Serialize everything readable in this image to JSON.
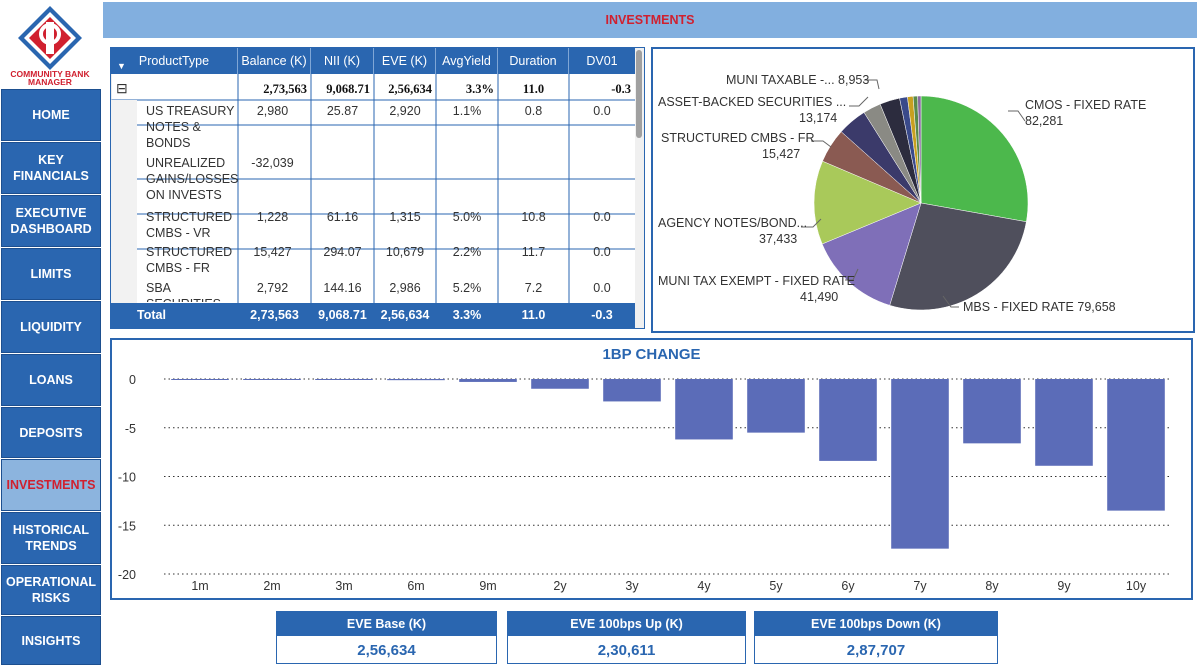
{
  "app": {
    "brand_line1": "COMMUNITY BANK",
    "brand_line2": "MANAGER",
    "page_title": "INVESTMENTS"
  },
  "nav": [
    {
      "label": "HOME"
    },
    {
      "label": "KEY\nFINANCIALS"
    },
    {
      "label": "EXECUTIVE\nDASHBOARD"
    },
    {
      "label": "LIMITS"
    },
    {
      "label": "LIQUIDITY"
    },
    {
      "label": "LOANS"
    },
    {
      "label": "DEPOSITS"
    },
    {
      "label": "INVESTMENTS",
      "active": true
    },
    {
      "label": "HISTORICAL\nTRENDS"
    },
    {
      "label": "OPERATIONAL\nRISKS"
    },
    {
      "label": "INSIGHTS"
    }
  ],
  "table": {
    "columns": [
      "ProductType",
      "Balance (K)",
      "NII (K)",
      "EVE (K)",
      "AvgYield",
      "Duration",
      "DV01"
    ],
    "group_row": {
      "toggle": "⊟",
      "balance": "2,73,563",
      "nii": "9,068.71",
      "eve": "2,56,634",
      "avgyield": "3.3%",
      "duration": "11.0",
      "dv01": "-0.3"
    },
    "rows": [
      {
        "name": "US TREASURY\nNOTES &\nBONDS",
        "balance": "2,980",
        "nii": "25.87",
        "eve": "2,920",
        "avgyield": "1.1%",
        "duration": "0.8",
        "dv01": "0.0"
      },
      {
        "name": "UNREALIZED\nGAINS/LOSSES\nON INVESTS",
        "balance": "-32,039",
        "nii": "",
        "eve": "",
        "avgyield": "",
        "duration": "",
        "dv01": ""
      },
      {
        "name": "STRUCTURED\nCMBS - VR",
        "balance": "1,228",
        "nii": "61.16",
        "eve": "1,315",
        "avgyield": "5.0%",
        "duration": "10.8",
        "dv01": "0.0"
      },
      {
        "name": "STRUCTURED\nCMBS - FR",
        "balance": "15,427",
        "nii": "294.07",
        "eve": "10,679",
        "avgyield": "2.2%",
        "duration": "11.7",
        "dv01": "0.0"
      },
      {
        "name": "SBA\nSECURITIES",
        "balance": "2,792",
        "nii": "144.16",
        "eve": "2,986",
        "avgyield": "5.2%",
        "duration": "7.2",
        "dv01": "0.0"
      }
    ],
    "total": {
      "label": "Total",
      "balance": "2,73,563",
      "nii": "9,068.71",
      "eve": "2,56,634",
      "avgyield": "3.3%",
      "duration": "11.0",
      "dv01": "-0.3"
    }
  },
  "pie_labels": {
    "muni_taxable": "MUNI TAXABLE -... 8,953",
    "abs_name": "ASSET-BACKED SECURITIES ...",
    "abs_value": "13,174",
    "cmbs_fr_name": "STRUCTURED CMBS - FR",
    "cmbs_fr_value": "15,427",
    "agency_name": "AGENCY NOTES/BOND...",
    "agency_value": "37,433",
    "muni_exempt_name": "MUNI TAX EXEMPT - FIXED RATE",
    "muni_exempt_value": "41,490",
    "mbs": "MBS - FIXED RATE 79,658",
    "cmos_name": "CMOS - FIXED RATE",
    "cmos_value": "82,281"
  },
  "chart_data": [
    {
      "type": "pie",
      "title": "",
      "slices": [
        {
          "label": "CMOS - FIXED RATE",
          "value": 82281,
          "color": "#4cb84c"
        },
        {
          "label": "MBS - FIXED RATE",
          "value": 79658,
          "color": "#4f4f5c"
        },
        {
          "label": "MUNI TAX EXEMPT - FIXED RATE",
          "value": 41490,
          "color": "#7f6fb8"
        },
        {
          "label": "AGENCY NOTES/BOND...",
          "value": 37433,
          "color": "#a9c95a"
        },
        {
          "label": "STRUCTURED CMBS - FR",
          "value": 15427,
          "color": "#8a5a52"
        },
        {
          "label": "ASSET-BACKED SECURITIES ...",
          "value": 13174,
          "color": "#3b3a6a"
        },
        {
          "label": "",
          "value": 8000,
          "color": "#8a8a84"
        },
        {
          "label": "MUNI TAXABLE -...",
          "value": 8953,
          "color": "#2c2c3e"
        },
        {
          "label": "",
          "value": 3500,
          "color": "#3a4a8a"
        },
        {
          "label": "",
          "value": 2500,
          "color": "#c8a020"
        },
        {
          "label": "",
          "value": 2000,
          "color": "#5a8a4a"
        },
        {
          "label": "",
          "value": 1500,
          "color": "#8a6aa0"
        }
      ]
    },
    {
      "type": "bar",
      "title": "1BP CHANGE",
      "categories": [
        "1m",
        "2m",
        "3m",
        "6m",
        "9m",
        "2y",
        "3y",
        "4y",
        "5y",
        "6y",
        "7y",
        "8y",
        "9y",
        "10y"
      ],
      "values": [
        -0.05,
        -0.08,
        -0.1,
        -0.12,
        -0.3,
        -1.0,
        -2.3,
        -6.2,
        -5.5,
        -8.4,
        -17.4,
        -6.6,
        -8.9,
        -13.5
      ],
      "ylim": [
        -20,
        0
      ],
      "yticks": [
        0,
        -5,
        -10,
        -15,
        -20
      ],
      "grid": true,
      "color": "#5b6cb8"
    }
  ],
  "kpis": [
    {
      "label": "EVE Base (K)",
      "value": "2,56,634"
    },
    {
      "label": "EVE 100bps Up (K)",
      "value": "2,30,611"
    },
    {
      "label": "EVE 100bps Down (K)",
      "value": "2,87,707"
    }
  ]
}
